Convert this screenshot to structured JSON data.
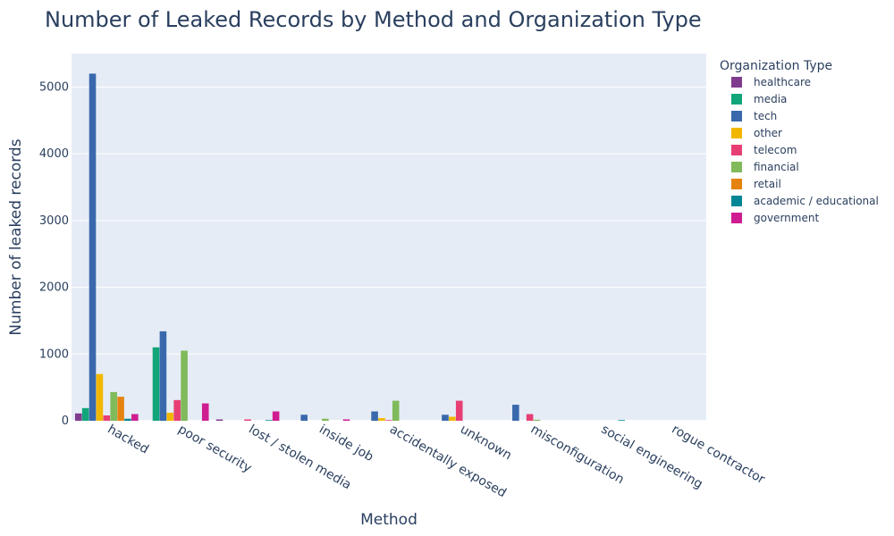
{
  "chart_data": {
    "type": "bar",
    "barmode": "group",
    "title": "Number of Leaked Records by Method and Organization Type",
    "xlabel": "Method",
    "ylabel": "Number of leaked records",
    "ylim": [
      0,
      5500
    ],
    "yticks": [
      0,
      1000,
      2000,
      3000,
      4000,
      5000
    ],
    "grid": true,
    "legend_title": "Organization Type",
    "legend_position": "right",
    "categories": [
      "hacked",
      "poor security",
      "lost / stolen media",
      "inside job",
      "accidentally exposed",
      "unknown",
      "misconfiguration",
      "social engineering",
      "rogue contractor"
    ],
    "series": [
      {
        "name": "healthcare",
        "color": "#7f3c8d",
        "values": [
          110,
          0,
          20,
          0,
          0,
          0,
          0,
          0,
          0
        ]
      },
      {
        "name": "media",
        "color": "#11a579",
        "values": [
          190,
          1100,
          0,
          0,
          0,
          0,
          0,
          0,
          0
        ]
      },
      {
        "name": "tech",
        "color": "#3969ac",
        "values": [
          5200,
          1340,
          0,
          90,
          140,
          90,
          240,
          0,
          0
        ]
      },
      {
        "name": "other",
        "color": "#f2b701",
        "values": [
          700,
          120,
          0,
          0,
          40,
          60,
          0,
          0,
          0
        ]
      },
      {
        "name": "telecom",
        "color": "#e73f74",
        "values": [
          80,
          310,
          20,
          0,
          10,
          300,
          100,
          0,
          0
        ]
      },
      {
        "name": "financial",
        "color": "#80ba5a",
        "values": [
          430,
          1050,
          0,
          30,
          300,
          0,
          15,
          0,
          0
        ]
      },
      {
        "name": "retail",
        "color": "#e68310",
        "values": [
          360,
          0,
          0,
          0,
          0,
          0,
          0,
          0,
          0
        ]
      },
      {
        "name": "academic / educational",
        "color": "#008695",
        "values": [
          30,
          0,
          10,
          0,
          0,
          0,
          0,
          10,
          0
        ]
      },
      {
        "name": "government",
        "color": "#cf1c90",
        "values": [
          100,
          260,
          140,
          20,
          0,
          0,
          0,
          0,
          0
        ]
      }
    ]
  }
}
